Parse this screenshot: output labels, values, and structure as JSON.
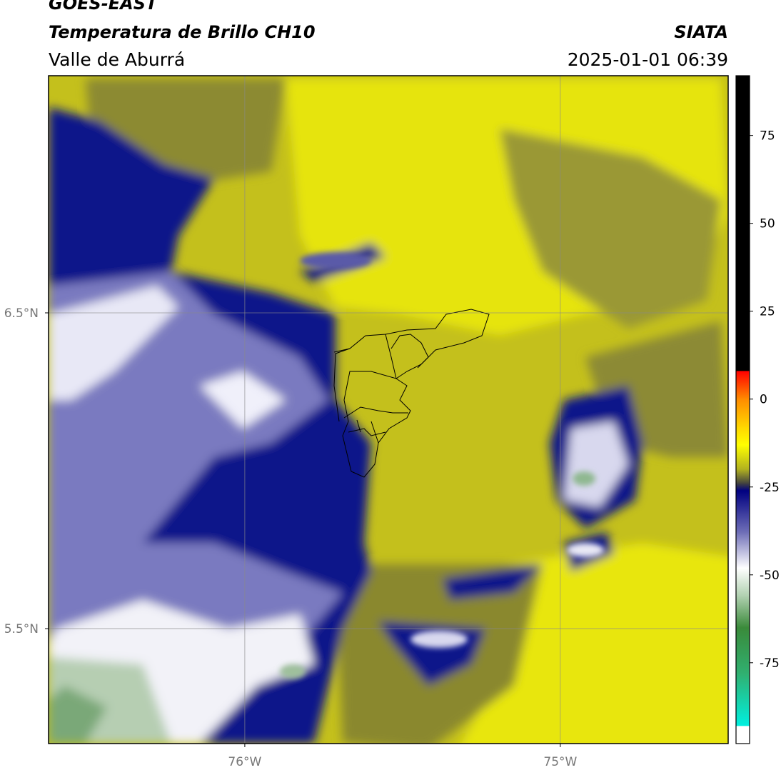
{
  "chart_data": {
    "type": "map",
    "title": "GOES-EAST",
    "subtitle": "Temperatura de Brillo CH10",
    "region": "Valle de Aburrá",
    "source": "SIATA",
    "datetime": "2025-01-01 06:39",
    "xlim": [
      -76.622,
      -74.468
    ],
    "ylim": [
      5.136,
      7.251
    ],
    "xticks": [
      {
        "value": -76,
        "label": "76°W"
      },
      {
        "value": -75,
        "label": "75°W"
      }
    ],
    "yticks": [
      {
        "value": 6.5,
        "label": "6.5°N"
      },
      {
        "value": 5.5,
        "label": "5.5°N"
      }
    ],
    "grid": true,
    "clim": [
      -98,
      92
    ],
    "cticks": [
      75,
      50,
      25,
      0,
      -25,
      -50,
      -75
    ],
    "colormap": [
      {
        "value": 92,
        "color": "#000000"
      },
      {
        "value": 8,
        "color": "#000000"
      },
      {
        "value": 8,
        "color": "#ff0000"
      },
      {
        "value": 0,
        "color": "#ff8c00"
      },
      {
        "value": -8,
        "color": "#ffd700"
      },
      {
        "value": -13,
        "color": "#ffff00"
      },
      {
        "value": -20,
        "color": "#b0b020"
      },
      {
        "value": -24,
        "color": "#404040"
      },
      {
        "value": -26,
        "color": "#000080"
      },
      {
        "value": -38,
        "color": "#7070b8"
      },
      {
        "value": -48,
        "color": "#ffffff"
      },
      {
        "value": -56,
        "color": "#b0d0b0"
      },
      {
        "value": -65,
        "color": "#3a8a3a"
      },
      {
        "value": -78,
        "color": "#30b070"
      },
      {
        "value": -93,
        "color": "#00f0e0"
      },
      {
        "value": -93,
        "color": "#ffffff"
      },
      {
        "value": -98,
        "color": "#ffffff"
      }
    ]
  }
}
